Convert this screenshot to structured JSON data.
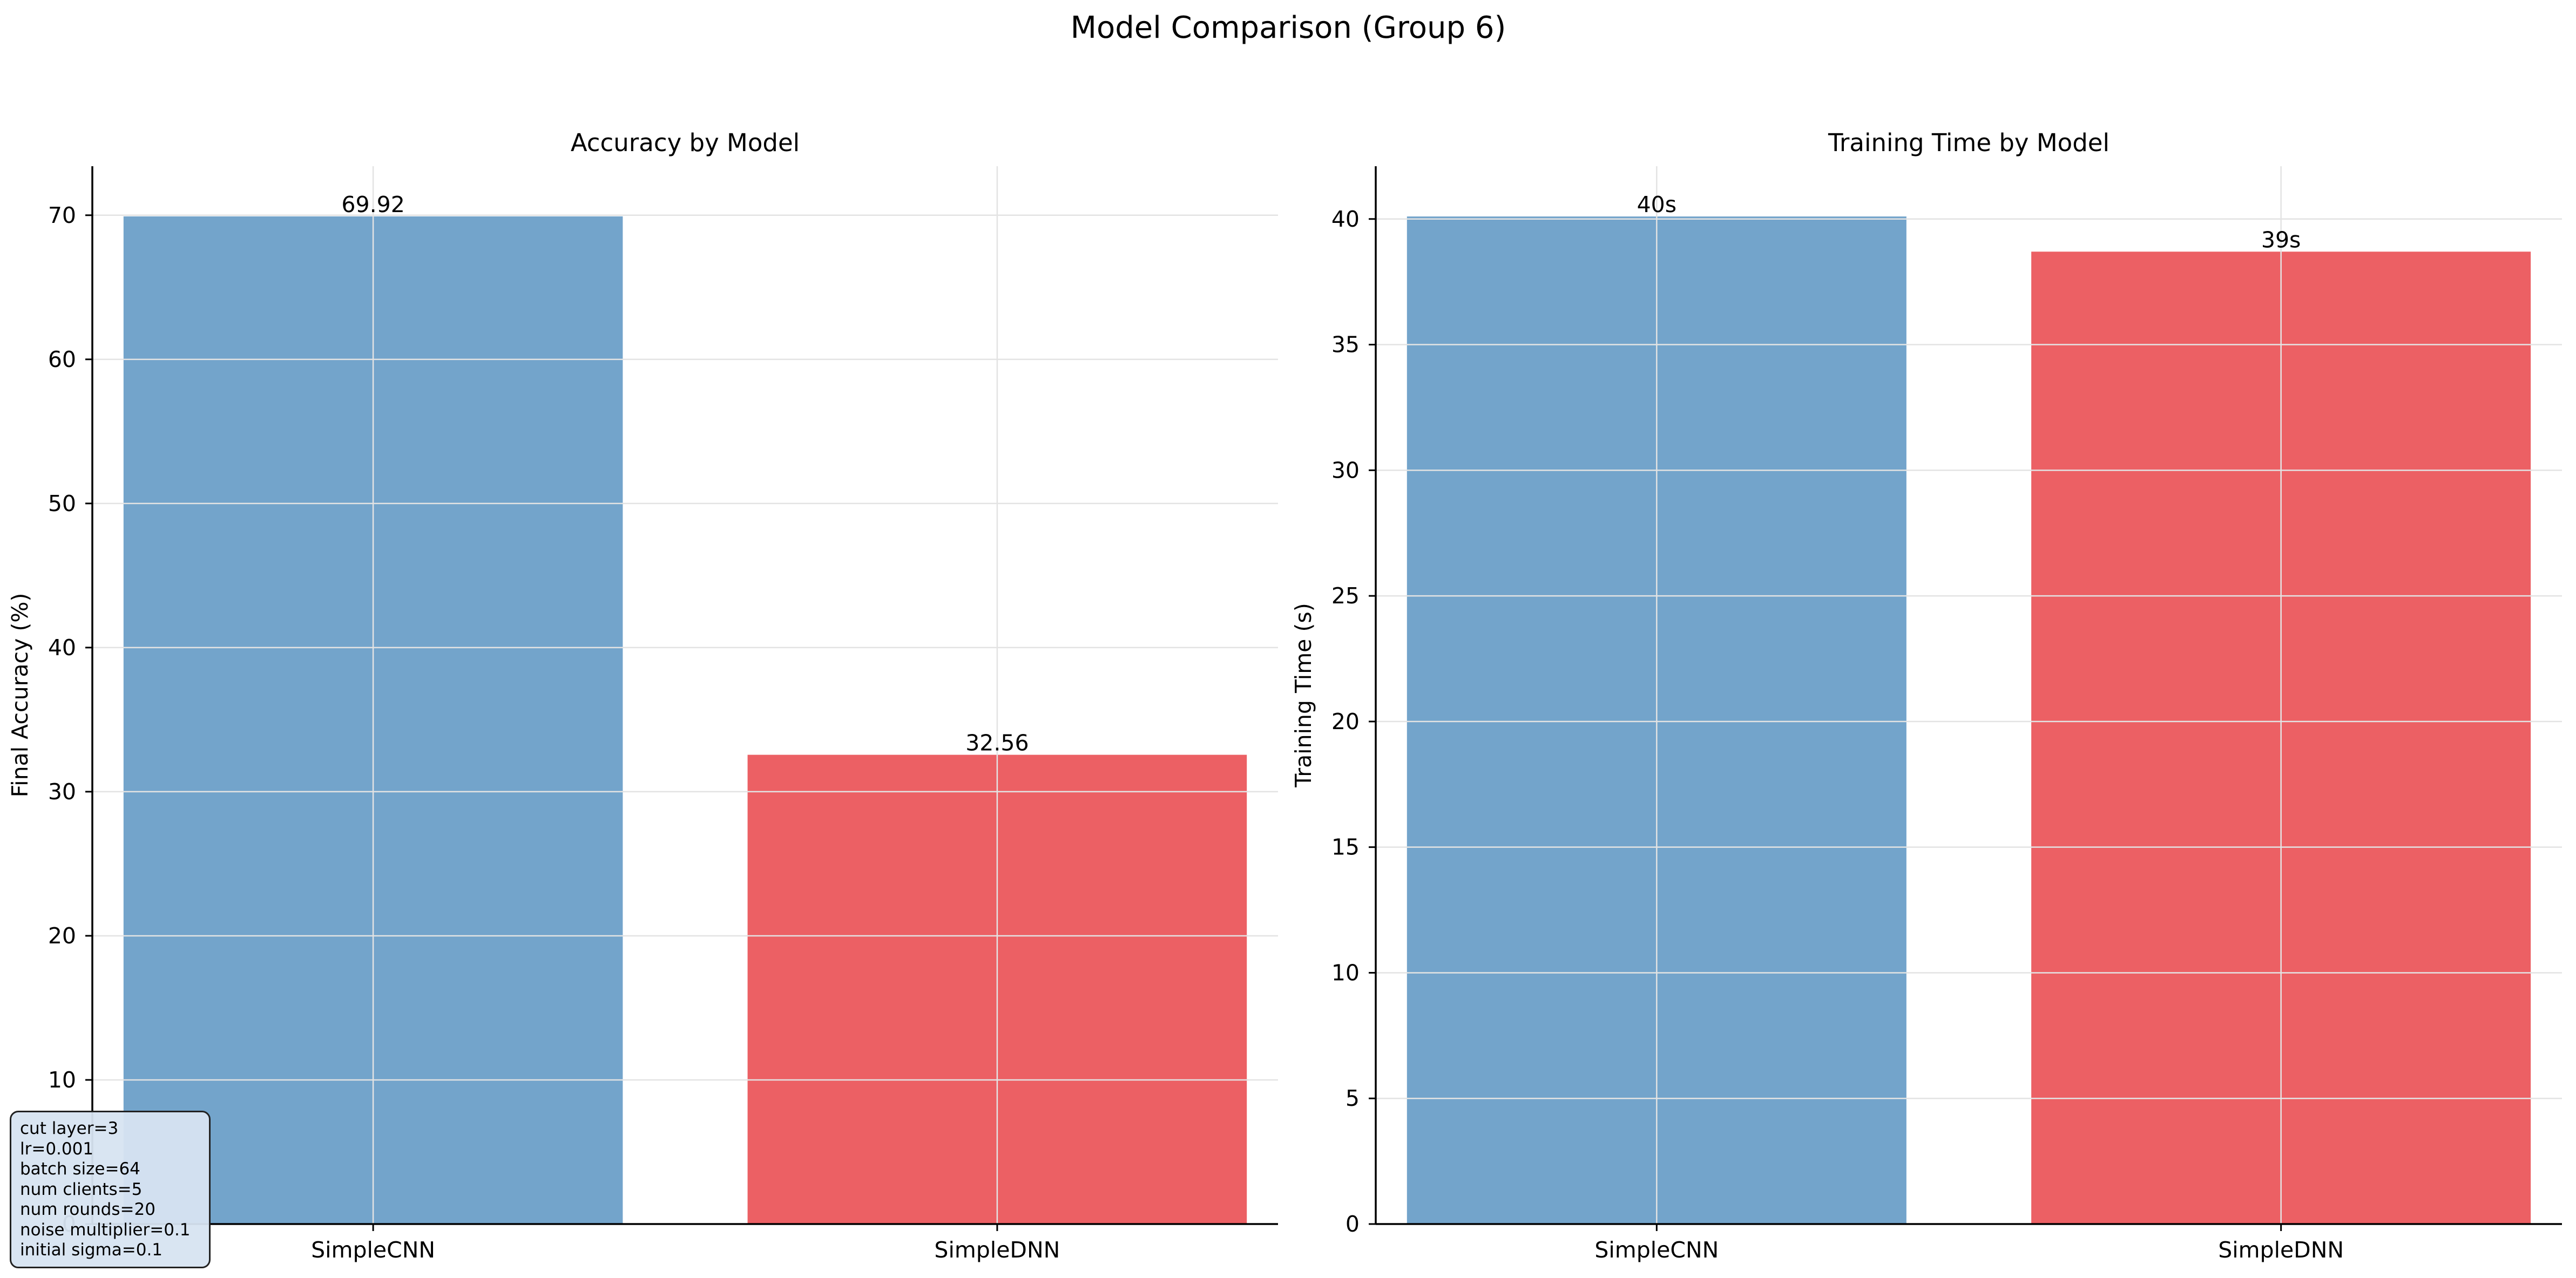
{
  "figure_title": "Model Comparison (Group 6)",
  "colors": {
    "SimpleCNN": "#73a4cb",
    "SimpleDNN": "#ec6064",
    "grid": "#e3e3e3",
    "axis": "#000000"
  },
  "chart_data": [
    {
      "type": "bar",
      "title": "Accuracy by Model",
      "xlabel": "",
      "ylabel": "Final Accuracy (%)",
      "categories": [
        "SimpleCNN",
        "SimpleDNN"
      ],
      "values": [
        69.92,
        32.56
      ],
      "value_labels": [
        "69.92",
        "32.56"
      ],
      "ylim": [
        0,
        73.4
      ],
      "yticks": [
        0,
        10,
        20,
        30,
        40,
        50,
        60,
        70
      ],
      "ytick_labels": [
        "0",
        "10",
        "20",
        "30",
        "40",
        "50",
        "60",
        "70"
      ],
      "grid": true
    },
    {
      "type": "bar",
      "title": "Training Time by Model",
      "xlabel": "",
      "ylabel": "Training Time (s)",
      "categories": [
        "SimpleCNN",
        "SimpleDNN"
      ],
      "values": [
        40.1,
        38.7
      ],
      "value_labels": [
        "40s",
        "39s"
      ],
      "ylim": [
        0,
        42.1
      ],
      "yticks": [
        0,
        5,
        10,
        15,
        20,
        25,
        30,
        35,
        40
      ],
      "ytick_labels": [
        "0",
        "5",
        "10",
        "15",
        "20",
        "25",
        "30",
        "35",
        "40"
      ],
      "grid": true
    }
  ],
  "params": [
    "cut layer=3",
    "lr=0.001",
    "batch size=64",
    "num clients=5",
    "num rounds=20",
    "noise multiplier=0.1",
    "initial sigma=0.1"
  ]
}
